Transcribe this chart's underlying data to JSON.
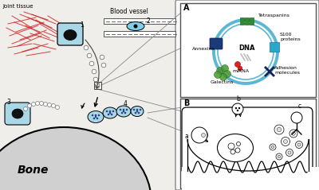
{
  "bg_color": "#f0eeea",
  "bone_color": "#d0d0d0",
  "cell_fill": "#a8d8e8",
  "cell_dark": "#111111",
  "red_fiber_color": "#cc2222",
  "vesicle_outline": "#888888",
  "labels": {
    "joint_tissue": "Joint tissue",
    "blood_vessel": "Blood vessel",
    "bone": "Bone",
    "l1": "1",
    "l2": "2",
    "l3": "3",
    "l4": "4",
    "panel_A": "A",
    "panel_B": "B",
    "tetraspanins": "Tetraspanins",
    "annexins": "Annexins",
    "dna": "DNA",
    "s100": "S100\nproteins",
    "mirna": "miRNA",
    "galectins": "Galectins",
    "adhesion": "Adhesion\nmolecules",
    "a_lbl": "a",
    "b_lbl": "b",
    "c_lbl": "c"
  },
  "colors": {
    "teal_circle": "#5bb8d4",
    "green_tetras": "#2e8b2e",
    "blue_annexins": "#1a3a7a",
    "cyan_s100": "#29a8cc",
    "green_galectins": "#4a9a30",
    "navy_adhesion": "#1a2055",
    "red_mirna": "#dd2222",
    "gray_dna": "#888888"
  }
}
